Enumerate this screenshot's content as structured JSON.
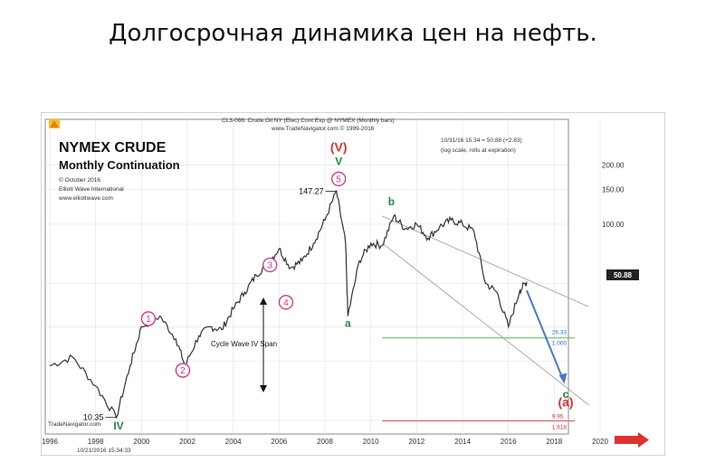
{
  "slide": {
    "title": "Долгосрочная динамика цен на нефть."
  },
  "chart_data": {
    "type": "line",
    "header_line1": "CL3-066: Crude Oil NY (Elec) Cont Exp @ NYMEX (Monthly bars)",
    "header_line2": "www.TradeNavigator.com © 1999-2016",
    "info_line1": "10/31/16 15:34 = 50.88 (+2.83)",
    "info_line2": "(log scale, rolls at expiration)",
    "title": "NYMEX CRUDE",
    "subtitle": "Monthly Continuation",
    "credits": [
      "© October 2016",
      "Elliott Wave International",
      "www.elliottwave.com"
    ],
    "source": "TradeNavigator.com",
    "timestamp": "10/21/2016 15:34:33",
    "x_ticks": [
      "1996",
      "1998",
      "2000",
      "2002",
      "2004",
      "2006",
      "2008",
      "2010",
      "2012",
      "2014",
      "2016",
      "2018",
      "2020"
    ],
    "y_ticks": [
      "200.00",
      "150.00",
      "100.00"
    ],
    "y_scale": "log",
    "price_tag": "50.88",
    "series": [
      {
        "x": [
          1996,
          1997,
          1998,
          1998.9,
          1999.5,
          2000,
          2000.8,
          2001.5,
          2001.9,
          2002.5,
          2003,
          2003.5,
          2004,
          2004.5,
          2005,
          2005.5,
          2006,
          2006.5,
          2007,
          2007.5,
          2008,
          2008.5,
          2008.9,
          2009,
          2009.5,
          2010,
          2010.5,
          2011,
          2011.5,
          2012,
          2012.5,
          2013,
          2013.5,
          2014,
          2014.5,
          2015,
          2015.5,
          2016,
          2016.5,
          2016.8
        ],
        "y": [
          19,
          21,
          15,
          10.35,
          19,
          30,
          34,
          26,
          19,
          27,
          30,
          29,
          37,
          45,
          55,
          63,
          75,
          60,
          65,
          80,
          105,
          147.27,
          80,
          34,
          65,
          80,
          78,
          110,
          95,
          100,
          85,
          97,
          105,
          100,
          92,
          50,
          45,
          30,
          46,
          50.88
        ]
      }
    ],
    "wave_labels": [
      {
        "text": "1",
        "x": 2000.3,
        "y": 33
      },
      {
        "text": "2",
        "x": 2001.8,
        "y": 18
      },
      {
        "text": "3",
        "x": 2005.6,
        "y": 62
      },
      {
        "text": "4",
        "x": 2006.3,
        "y": 40
      },
      {
        "text": "5",
        "x": 2008.6,
        "y": 170
      },
      {
        "text": "V",
        "x": 2008.6,
        "y": 200
      },
      {
        "text": "(V)",
        "x": 2008.6,
        "y": 235
      },
      {
        "text": "IV",
        "x": 1999.0,
        "y": 9
      },
      {
        "text": "a",
        "x": 2009.0,
        "y": 30
      },
      {
        "text": "b",
        "x": 2010.9,
        "y": 125
      },
      {
        "text": "c",
        "x": 2018.5,
        "y": 13
      },
      {
        "text": "(a)",
        "x": 2018.5,
        "y": 11.8
      }
    ],
    "annotations": {
      "price_high": "147.27",
      "price_low": "10.35",
      "span_label": "Cycle Wave IV Span",
      "fib_upper_value": "26.33",
      "fib_upper_ratio": "1.000",
      "fib_lower_value": "9.95",
      "fib_lower_ratio": "1.618"
    },
    "ref_lines": [
      {
        "value": 26.33,
        "color": "#5cb85c"
      },
      {
        "value": 9.95,
        "color": "#e05555"
      }
    ],
    "colors": {
      "price": "#333333",
      "wave_circle": "#d63384",
      "wave_green": "#1e8a3c",
      "wave_red": "#e03131",
      "projection": "#4a78c9",
      "channel": "#9a9a9a"
    }
  }
}
